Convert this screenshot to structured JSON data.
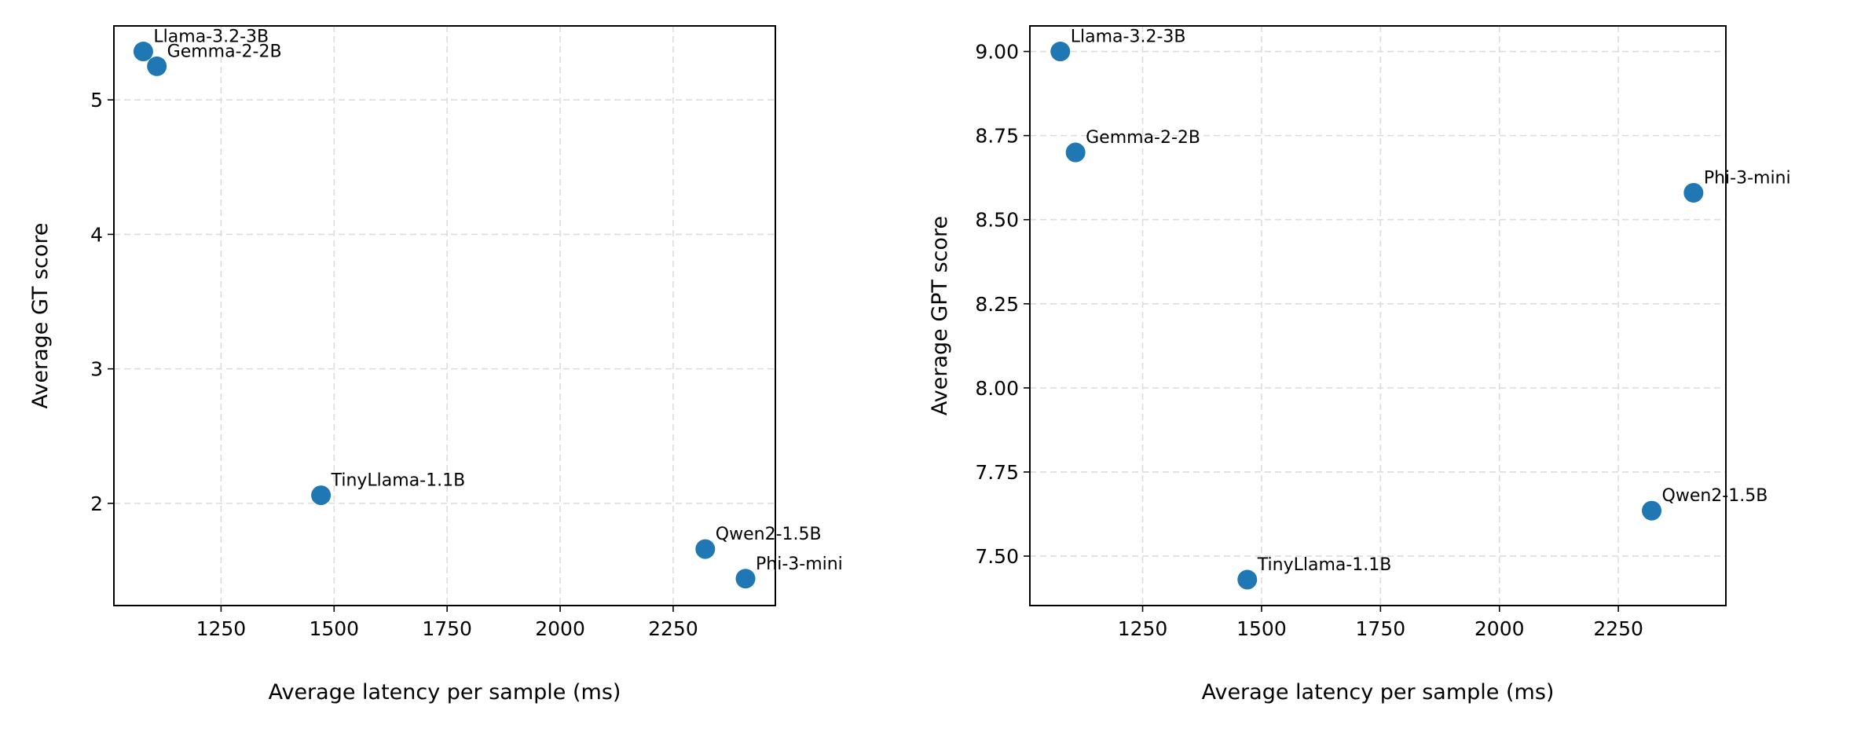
{
  "chart_data": [
    {
      "type": "scatter",
      "xlabel": "Average latency per sample (ms)",
      "ylabel": "Average GT score",
      "xlim": [
        1013,
        2476
      ],
      "ylim": [
        1.24,
        5.55
      ],
      "xticks": [
        1250,
        1500,
        1750,
        2000,
        2250
      ],
      "yticks": [
        2,
        3,
        4,
        5
      ],
      "ytick_labels": [
        "2",
        "3",
        "4",
        "5"
      ],
      "grid": true,
      "color": "#1f77b4",
      "points": [
        {
          "label": "Llama-3.2-3B",
          "x": 1078,
          "y": 5.36
        },
        {
          "label": "Gemma-2-2B",
          "x": 1108,
          "y": 5.25
        },
        {
          "label": "TinyLlama-1.1B",
          "x": 1471,
          "y": 2.06
        },
        {
          "label": "Qwen2-1.5B",
          "x": 2321,
          "y": 1.66
        },
        {
          "label": "Phi-3-mini",
          "x": 2410,
          "y": 1.44
        }
      ]
    },
    {
      "type": "scatter",
      "xlabel": "Average latency per sample (ms)",
      "ylabel": "Average GPT score",
      "xlim": [
        1013,
        2476
      ],
      "ylim": [
        7.353,
        9.076
      ],
      "xticks": [
        1250,
        1500,
        1750,
        2000,
        2250
      ],
      "yticks": [
        7.5,
        7.75,
        8.0,
        8.25,
        8.5,
        8.75,
        9.0
      ],
      "ytick_labels": [
        "7.50",
        "7.75",
        "8.00",
        "8.25",
        "8.50",
        "8.75",
        "9.00"
      ],
      "grid": true,
      "color": "#1f77b4",
      "points": [
        {
          "label": "Llama-3.2-3B",
          "x": 1077,
          "y": 9.0
        },
        {
          "label": "Gemma-2-2B",
          "x": 1109,
          "y": 8.7
        },
        {
          "label": "TinyLlama-1.1B",
          "x": 1470,
          "y": 7.43
        },
        {
          "label": "Qwen2-1.5B",
          "x": 2320,
          "y": 7.635
        },
        {
          "label": "Phi-3-mini",
          "x": 2408,
          "y": 8.58
        }
      ]
    }
  ]
}
